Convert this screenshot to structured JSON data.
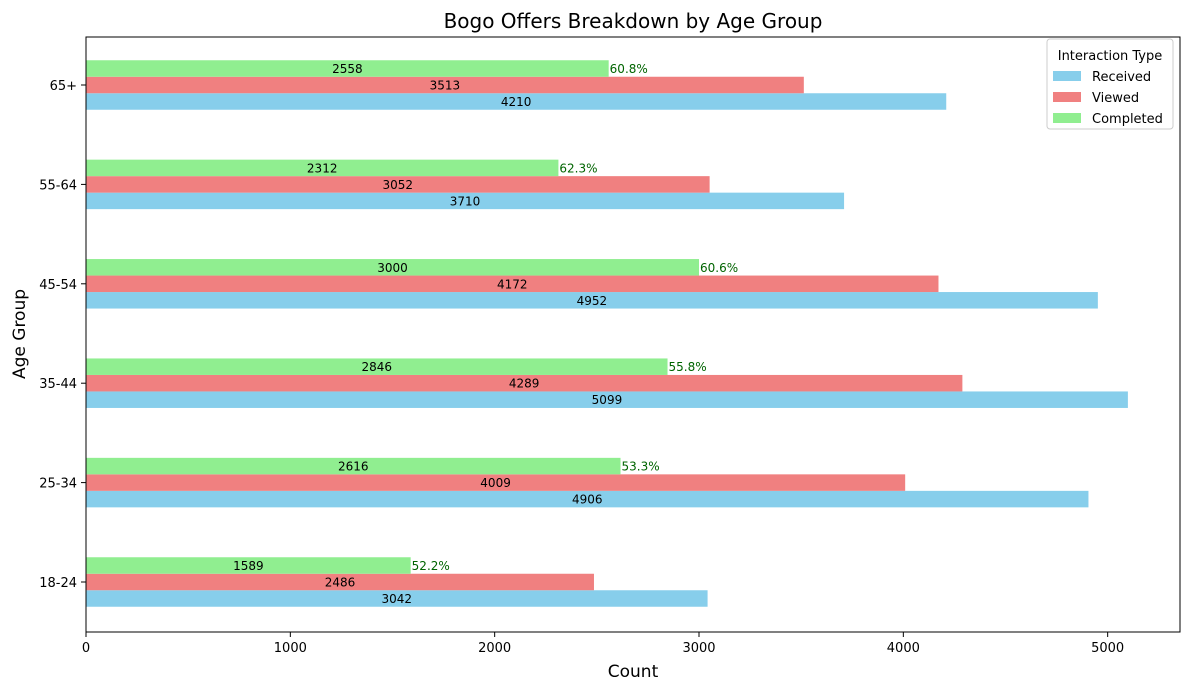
{
  "chart_data": {
    "type": "bar",
    "orientation": "horizontal",
    "title": "Bogo Offers Breakdown by Age Group",
    "xlabel": "Count",
    "ylabel": "Age Group",
    "categories": [
      "18-24",
      "25-34",
      "35-44",
      "45-54",
      "55-64",
      "65+"
    ],
    "series": [
      {
        "name": "Received",
        "color": "#87CEEB",
        "values": [
          3042,
          4906,
          5099,
          4952,
          3710,
          4210
        ]
      },
      {
        "name": "Viewed",
        "color": "#F08080",
        "values": [
          2486,
          4009,
          4289,
          4172,
          3052,
          3513
        ]
      },
      {
        "name": "Completed",
        "color": "#90EE90",
        "values": [
          1589,
          2616,
          2846,
          3000,
          2312,
          2558
        ]
      }
    ],
    "completion_rates": [
      "52.2%",
      "53.3%",
      "55.8%",
      "60.6%",
      "62.3%",
      "60.8%"
    ],
    "completion_rate_color": "#006400",
    "xlim": [
      0,
      5354
    ],
    "xticks": [
      0,
      1000,
      2000,
      3000,
      4000,
      5000
    ],
    "grid": false,
    "legend": {
      "title": "Interaction Type",
      "placement": "top-right"
    }
  }
}
